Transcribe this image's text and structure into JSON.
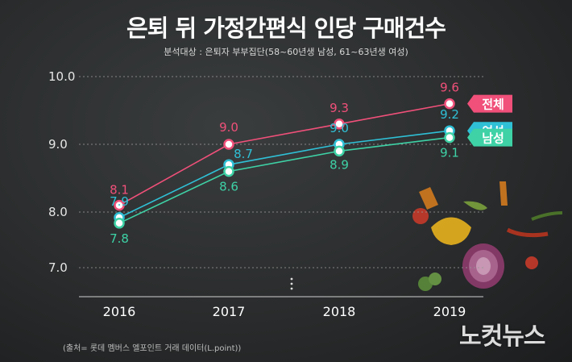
{
  "header": {
    "title": "은퇴 뒤 가정간편식 인당 구매건수",
    "subtitle": "분석대상 : 은퇴자 부부집단(58~60년생 남성, 61~63년생 여성)"
  },
  "footer": {
    "source": "(출처= 롯데 멤버스 엘포인트 거래 데이터(L.point))",
    "watermark": "노컷뉴스"
  },
  "chart_data": {
    "type": "line",
    "title": "은퇴 뒤 가정간편식 인당 구매건수",
    "subtitle": "분석대상 : 은퇴자 부부집단(58~60년생 남성, 61~63년생 여성)",
    "x": [
      "2016",
      "2017",
      "2018",
      "2019"
    ],
    "y_ticks": [
      "10.0",
      "9.0",
      "8.0",
      "7.0"
    ],
    "ylim": [
      7.0,
      10.0
    ],
    "axis_break": true,
    "grid": true,
    "xlabel": "",
    "ylabel": "",
    "legend": "right, labels at line ends",
    "series": [
      {
        "name": "전체",
        "values": [
          8.1,
          9.0,
          9.3,
          9.6
        ],
        "labels": [
          "8.1",
          "9.0",
          "9.3",
          "9.6"
        ],
        "color": "#f0507a"
      },
      {
        "name": "여성",
        "values": [
          7.9,
          8.7,
          9.0,
          9.2
        ],
        "labels": [
          "7.9",
          "8.7",
          "9.0",
          "9.2"
        ],
        "color": "#2fc0d6"
      },
      {
        "name": "남성",
        "values": [
          7.8,
          8.6,
          8.9,
          9.1
        ],
        "labels": [
          "7.8",
          "8.6",
          "8.9",
          "9.1"
        ],
        "color": "#3ed2a6"
      }
    ]
  }
}
